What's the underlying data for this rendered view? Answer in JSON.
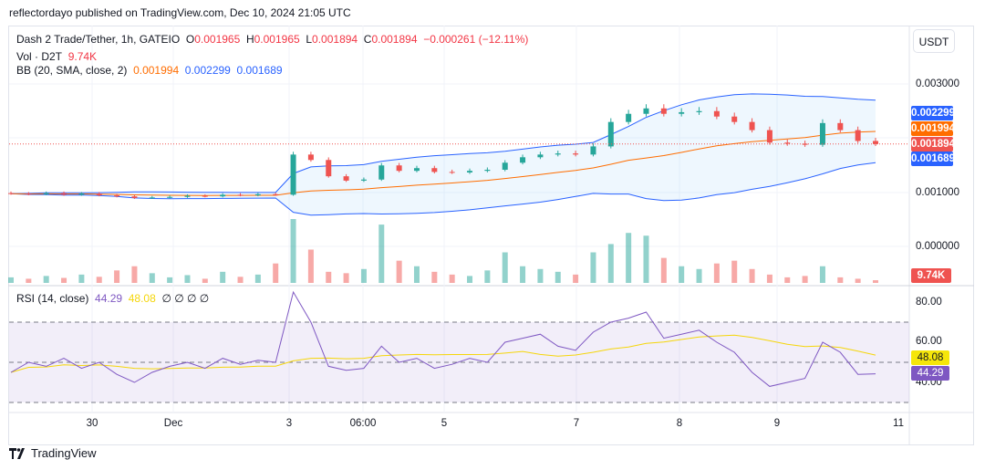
{
  "publish_line": "reflectordayo published on TradingView.com, Dec 10, 2024 21:05 UTC",
  "legend": {
    "symbol": "Dash 2 Trade/Tether, 1h, GATEIO",
    "o_label": "O",
    "o": "0.001965",
    "h_label": "H",
    "h": "0.001965",
    "l_label": "L",
    "l": "0.001894",
    "c_label": "C",
    "c": "0.001894",
    "change": "−0.000261 (−12.11%)",
    "vol_label": "Vol · D2T",
    "vol": "9.74K",
    "bb_label": "BB (20, SMA, close, 2)",
    "bb_mid": "0.001994",
    "bb_upper": "0.002299",
    "bb_lower": "0.001689",
    "rsi_label": "RSI (14, close)",
    "rsi": "44.29",
    "rsi_ma": "48.08",
    "rsi_extra": "∅ ∅ ∅ ∅"
  },
  "currency_button": "USDT",
  "price_axis": [
    "0.003000",
    "0.001000",
    "0.000000"
  ],
  "price_tags": {
    "upper": "0.002299",
    "mid": "0.001994",
    "last": "0.001894",
    "lower": "0.001689",
    "volume": "9.74K"
  },
  "rsi_axis": [
    "80.00",
    "60.00",
    "40.00"
  ],
  "rsi_tags": {
    "ma": "48.08",
    "rsi": "44.29"
  },
  "time_axis": [
    "30",
    "Dec",
    "3",
    "06:00",
    "5",
    "7",
    "8",
    "9",
    "11"
  ],
  "brand": "TradingView",
  "colors": {
    "up": "#26a69a",
    "down": "#ef5350",
    "bb_band": "#2962ff",
    "bb_mid": "#ff6d00",
    "rsi": "#7e57c2",
    "rsi_ma": "#f5d60a"
  },
  "chart_data": {
    "type": "candlestick",
    "title": "Dash 2 Trade/Tether, 1h, GATEIO",
    "ylim": [
      0,
      0.0035
    ],
    "closes": [
      0.00098,
      0.00097,
      0.00099,
      0.00096,
      0.00098,
      0.00095,
      0.00093,
      0.0009,
      0.00091,
      0.00092,
      0.00094,
      0.00093,
      0.00096,
      0.00095,
      0.00097,
      0.00096,
      0.0017,
      0.0016,
      0.0013,
      0.00122,
      0.00124,
      0.0015,
      0.0014,
      0.00145,
      0.00138,
      0.00137,
      0.0014,
      0.00142,
      0.00155,
      0.00165,
      0.0017,
      0.00172,
      0.0017,
      0.00185,
      0.0023,
      0.00245,
      0.00255,
      0.00245,
      0.00248,
      0.0025,
      0.0024,
      0.0023,
      0.00215,
      0.00192,
      0.0019,
      0.00188,
      0.00228,
      0.00215,
      0.00195,
      0.001894
    ],
    "volume_k": [
      20,
      15,
      25,
      18,
      30,
      22,
      45,
      60,
      35,
      20,
      28,
      15,
      40,
      22,
      30,
      70,
      230,
      120,
      40,
      35,
      50,
      210,
      80,
      60,
      40,
      30,
      25,
      45,
      110,
      60,
      50,
      40,
      30,
      110,
      140,
      180,
      170,
      90,
      60,
      50,
      70,
      80,
      50,
      30,
      20,
      25,
      60,
      20,
      15,
      9.74
    ],
    "rsi": [
      45,
      50,
      48,
      52,
      47,
      50,
      44,
      40,
      45,
      48,
      50,
      47,
      52,
      49,
      51,
      50,
      85,
      70,
      48,
      46,
      47,
      58,
      50,
      52,
      47,
      49,
      52,
      50,
      60,
      62,
      64,
      58,
      56,
      65,
      70,
      72,
      75,
      62,
      64,
      66,
      60,
      55,
      45,
      38,
      40,
      42,
      60,
      55,
      44,
      44.29
    ],
    "rsi_levels": [
      70,
      50,
      30
    ]
  }
}
